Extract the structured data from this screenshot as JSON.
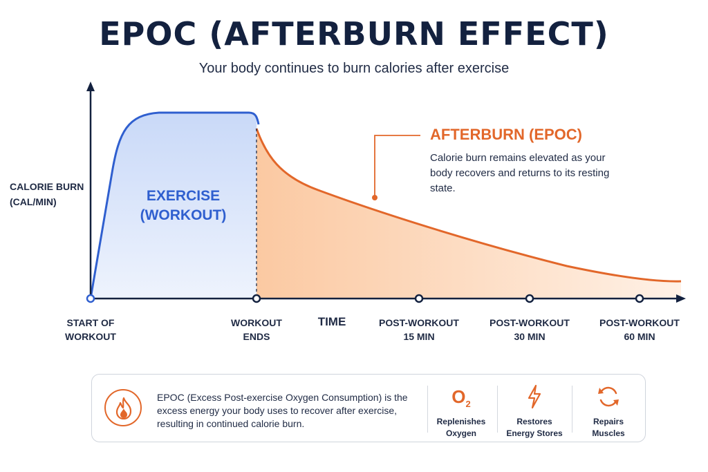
{
  "header": {
    "title": "EPOC (AFTERBURN EFFECT)",
    "subtitle": "Your body continues to burn calories after exercise"
  },
  "chart": {
    "y_axis_label": [
      "CALORIE BURN",
      "(CAL/MIN)"
    ],
    "x_axis_title": "TIME",
    "x_ticks": [
      {
        "lines": [
          "START OF",
          "WORKOUT"
        ]
      },
      {
        "lines": [
          "WORKOUT",
          "ENDS"
        ]
      },
      {
        "lines": [
          "POST-WORKOUT",
          "15 MIN"
        ]
      },
      {
        "lines": [
          "POST-WORKOUT",
          "30 MIN"
        ]
      },
      {
        "lines": [
          "POST-WORKOUT",
          "60 MIN"
        ]
      }
    ],
    "exercise_label": [
      "EXERCISE",
      "(WORKOUT)"
    ],
    "epoc_title": "AFTERBURN (EPOC)",
    "epoc_description": "Calorie burn remains elevated as your body recovers and returns to its resting state.",
    "colors": {
      "exercise": "#2f5fcf",
      "epoc": "#e2672a",
      "axis": "#13213f"
    }
  },
  "info": {
    "text": "EPOC (Excess Post-exercise Oxygen Consumption) is the excess energy your body uses to recover after exercise, resulting in continued calorie burn.",
    "icon": "fire-icon",
    "benefits": [
      {
        "icon": "oxygen-icon",
        "symbol": "O",
        "subscript": "2",
        "lines": [
          "Replenishes",
          "Oxygen"
        ]
      },
      {
        "icon": "lightning-icon",
        "lines": [
          "Restores",
          "Energy Stores"
        ]
      },
      {
        "icon": "refresh-icon",
        "lines": [
          "Repairs",
          "Muscles"
        ]
      }
    ]
  }
}
